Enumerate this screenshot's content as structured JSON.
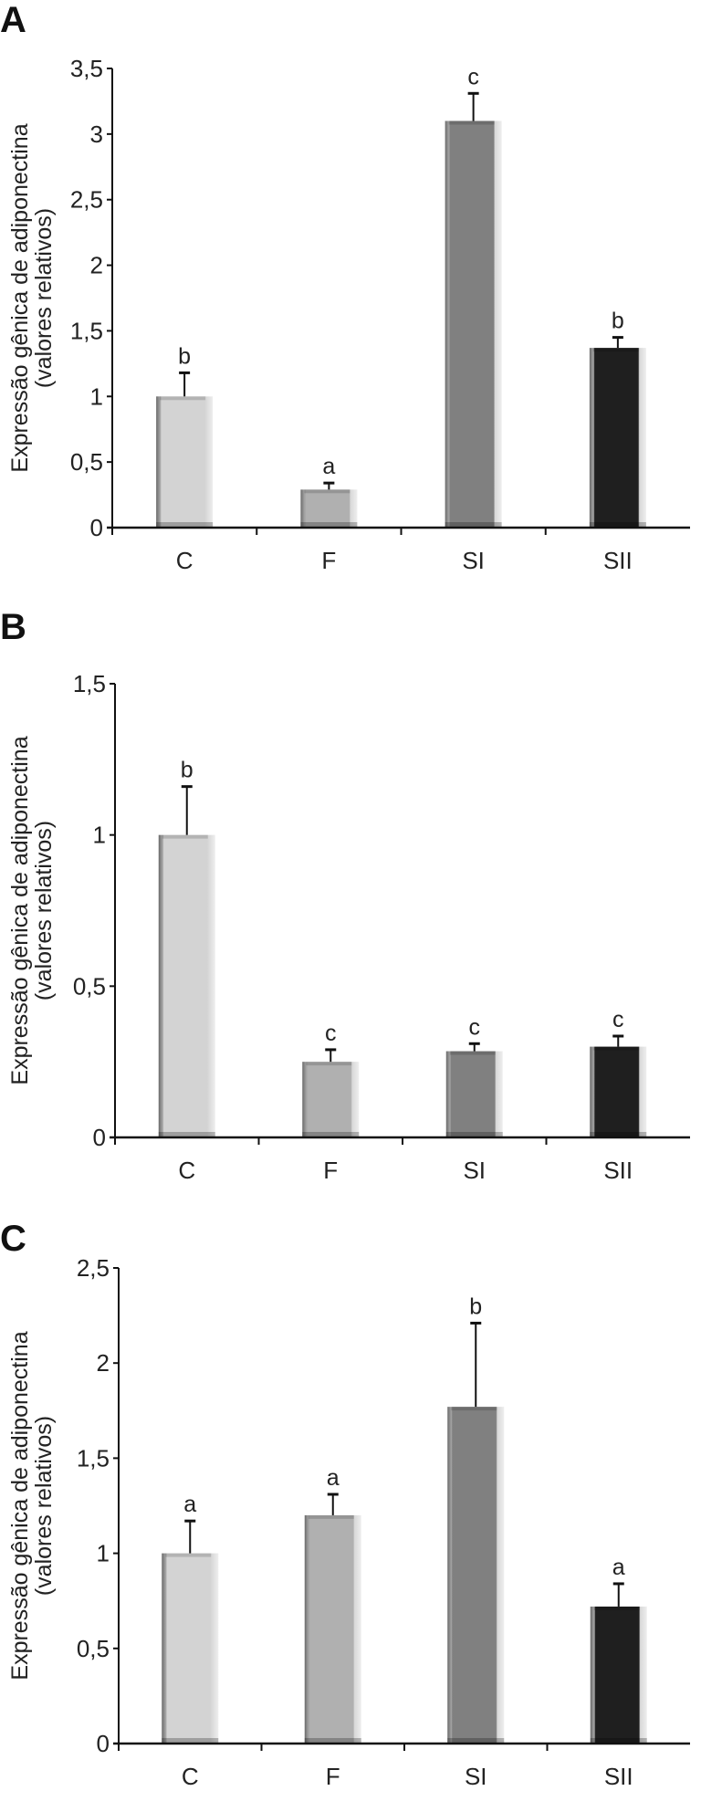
{
  "chart_data": [
    {
      "type": "bar",
      "panel_label": "A",
      "ylabel": [
        "Expressão gênica de adiponectina",
        "(valores relativos)"
      ],
      "categories": [
        "C",
        "F",
        "SI",
        "SII"
      ],
      "values": [
        1.0,
        0.29,
        3.1,
        1.37
      ],
      "error_upper": [
        1.18,
        0.34,
        3.31,
        1.45
      ],
      "significance": [
        "b",
        "a",
        "c",
        "b"
      ],
      "ylim": [
        0,
        3.5
      ],
      "yticks": [
        0,
        0.5,
        1,
        1.5,
        2,
        2.5,
        3,
        3.5
      ],
      "ytick_labels": [
        "0",
        "0,5",
        "1",
        "1,5",
        "2",
        "2,5",
        "3",
        "3,5"
      ],
      "grid": false
    },
    {
      "type": "bar",
      "panel_label": "B",
      "ylabel": [
        "Expressão gênica de adiponectina",
        "(valores relativos)"
      ],
      "categories": [
        "C",
        "F",
        "SI",
        "SII"
      ],
      "values": [
        1.0,
        0.25,
        0.285,
        0.3
      ],
      "error_upper": [
        1.16,
        0.29,
        0.31,
        0.335
      ],
      "significance": [
        "b",
        "c",
        "c",
        "c"
      ],
      "ylim": [
        0,
        1.5
      ],
      "yticks": [
        0,
        0.5,
        1,
        1.5
      ],
      "ytick_labels": [
        "0",
        "0,5",
        "1",
        "1,5"
      ],
      "grid": false
    },
    {
      "type": "bar",
      "panel_label": "C",
      "ylabel": [
        "Expressão gênica de adiponectina",
        "(valores relativos)"
      ],
      "categories": [
        "C",
        "F",
        "SI",
        "SII"
      ],
      "values": [
        1.0,
        1.2,
        1.77,
        0.72
      ],
      "error_upper": [
        1.17,
        1.31,
        2.21,
        0.84
      ],
      "significance": [
        "a",
        "a",
        "b",
        "a"
      ],
      "ylim": [
        0,
        2.5
      ],
      "yticks": [
        0,
        0.5,
        1,
        1.5,
        2,
        2.5
      ],
      "ytick_labels": [
        "0",
        "0,5",
        "1",
        "1,5",
        "2",
        "2,5"
      ],
      "grid": false
    }
  ],
  "colors": {
    "C": "#d3d3d3",
    "F": "#b0b0b0",
    "SI": "#808080",
    "SII": "#1f1f1f"
  }
}
